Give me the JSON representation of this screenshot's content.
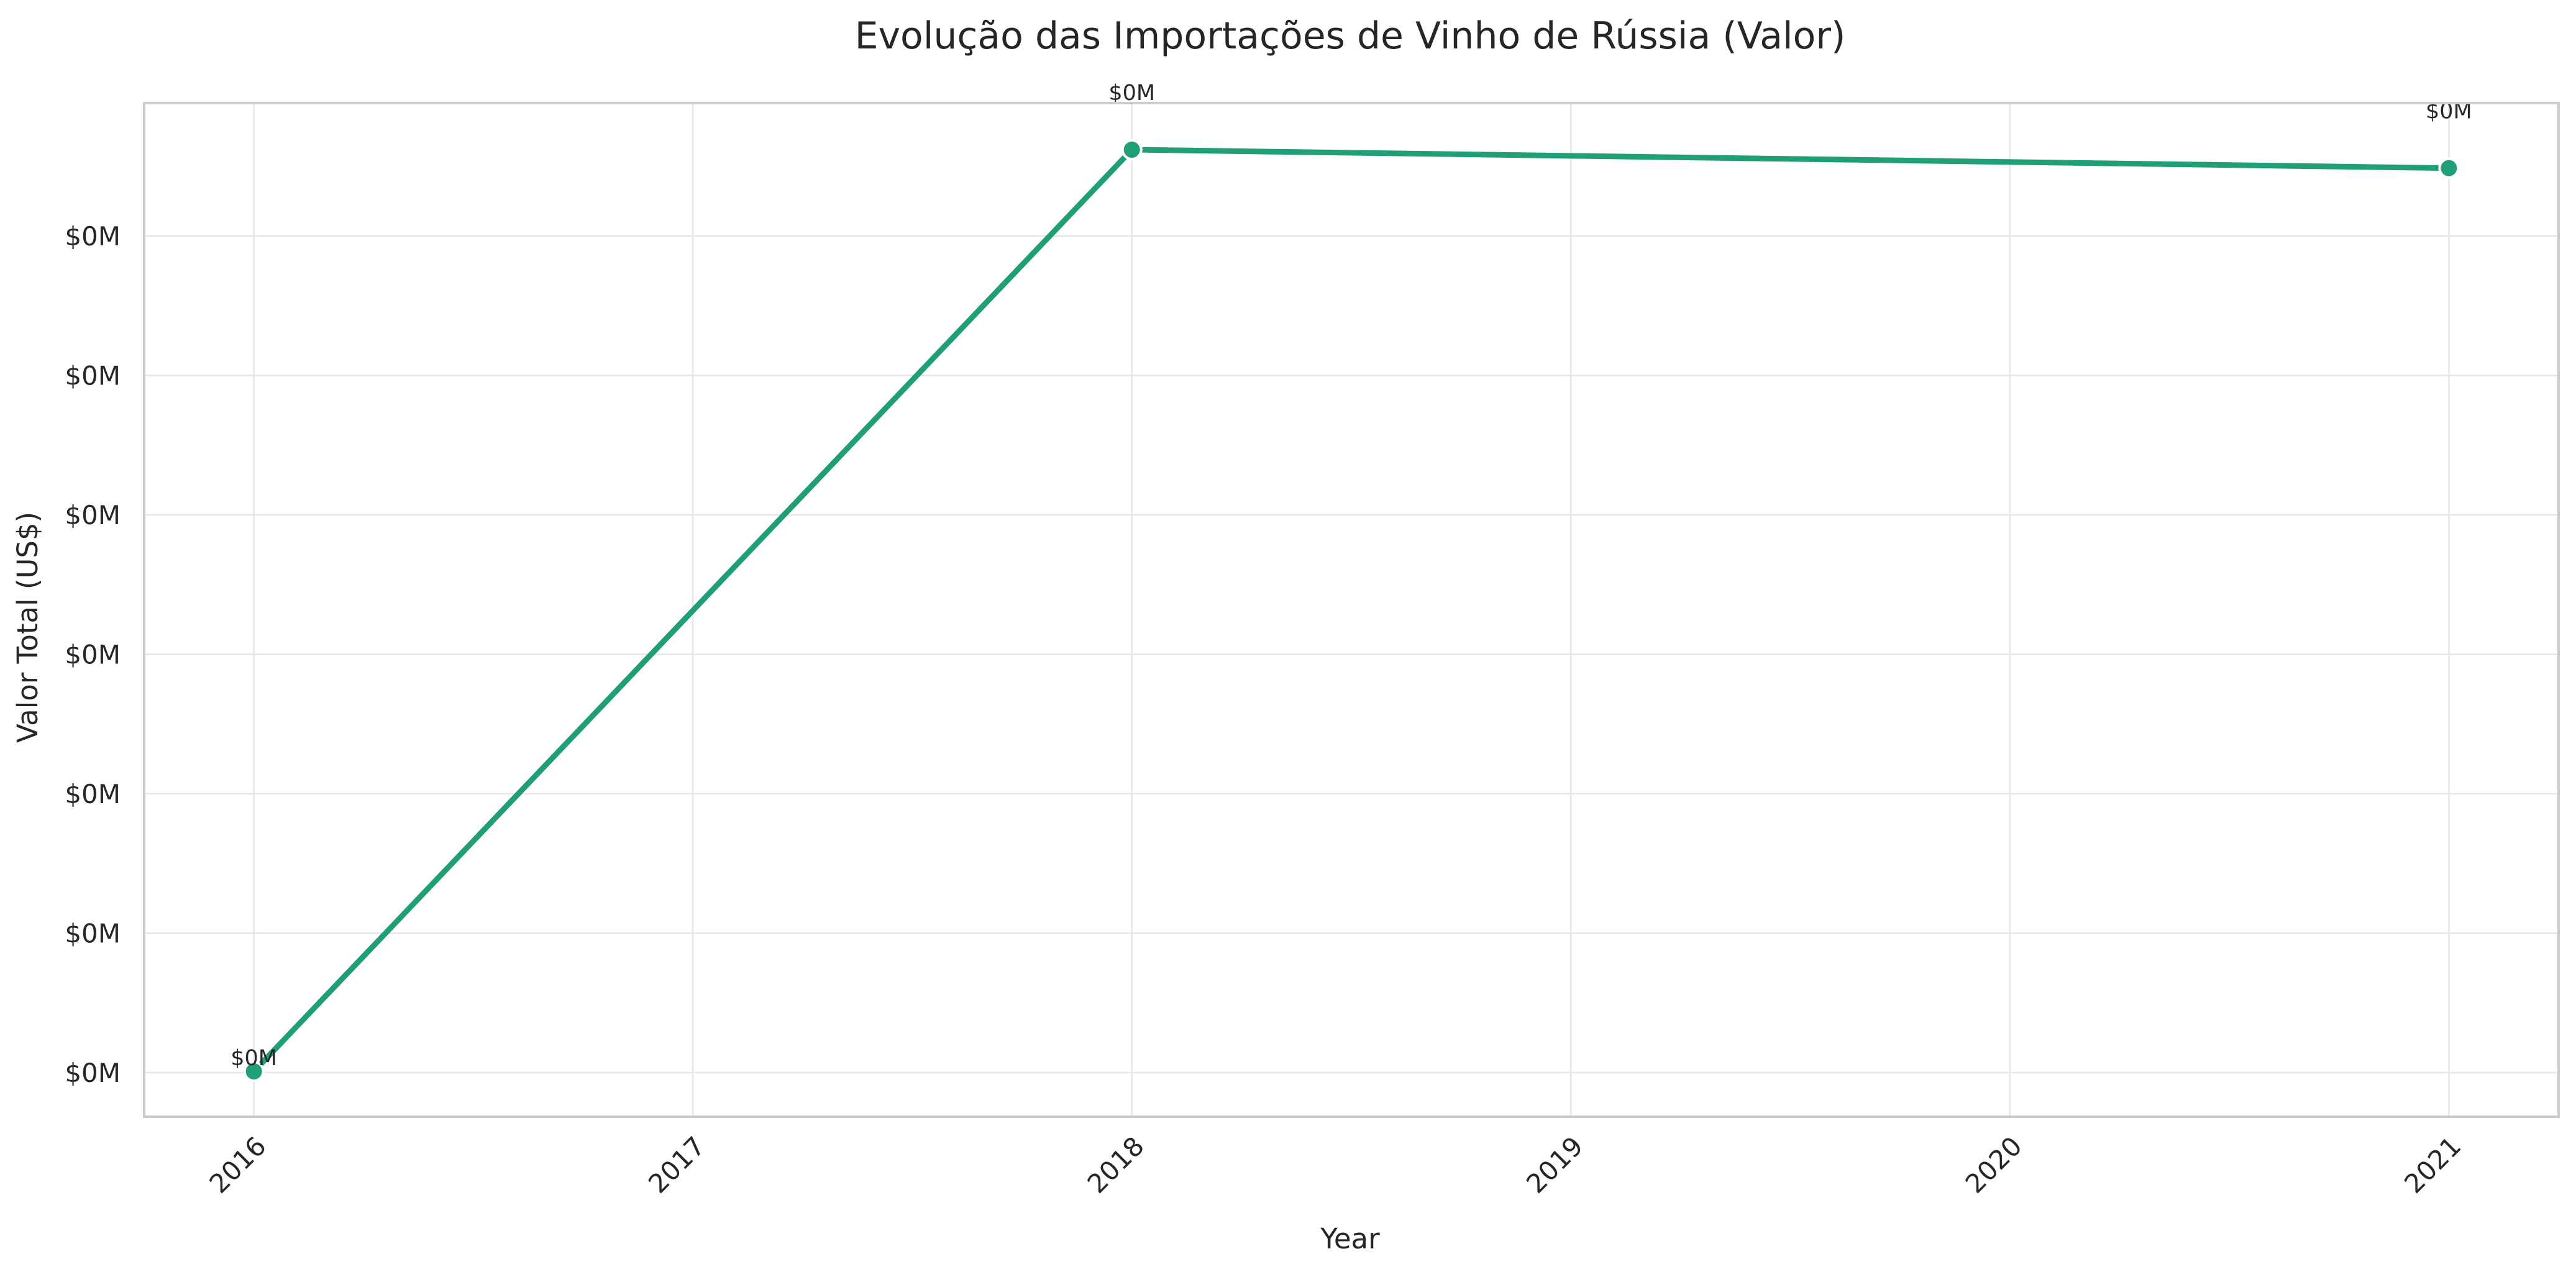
{
  "chart_data": {
    "type": "line",
    "title": "Evolução das Importações de Vinho de Rússia (Valor)",
    "xlabel": "Year",
    "ylabel": "Valor Total (US$)",
    "x": [
      2016,
      2018,
      2021
    ],
    "x_ticks": [
      "2016",
      "2017",
      "2018",
      "2019",
      "2020",
      "2021"
    ],
    "x_range": [
      2015.75,
      2021.25
    ],
    "y_tick_labels": [
      "$0M",
      "$0M",
      "$0M",
      "$0M",
      "$0M",
      "$0M",
      "$0M"
    ],
    "series": [
      {
        "values": [
          0.0,
          0.0,
          0.0
        ],
        "relative_level": [
          0.0,
          1.0,
          0.98
        ],
        "data_labels": [
          "$0M",
          "$0M",
          "$0M"
        ]
      }
    ],
    "grid": true,
    "line_color": "#1f9e77",
    "marker_color": "#1f9e77"
  }
}
